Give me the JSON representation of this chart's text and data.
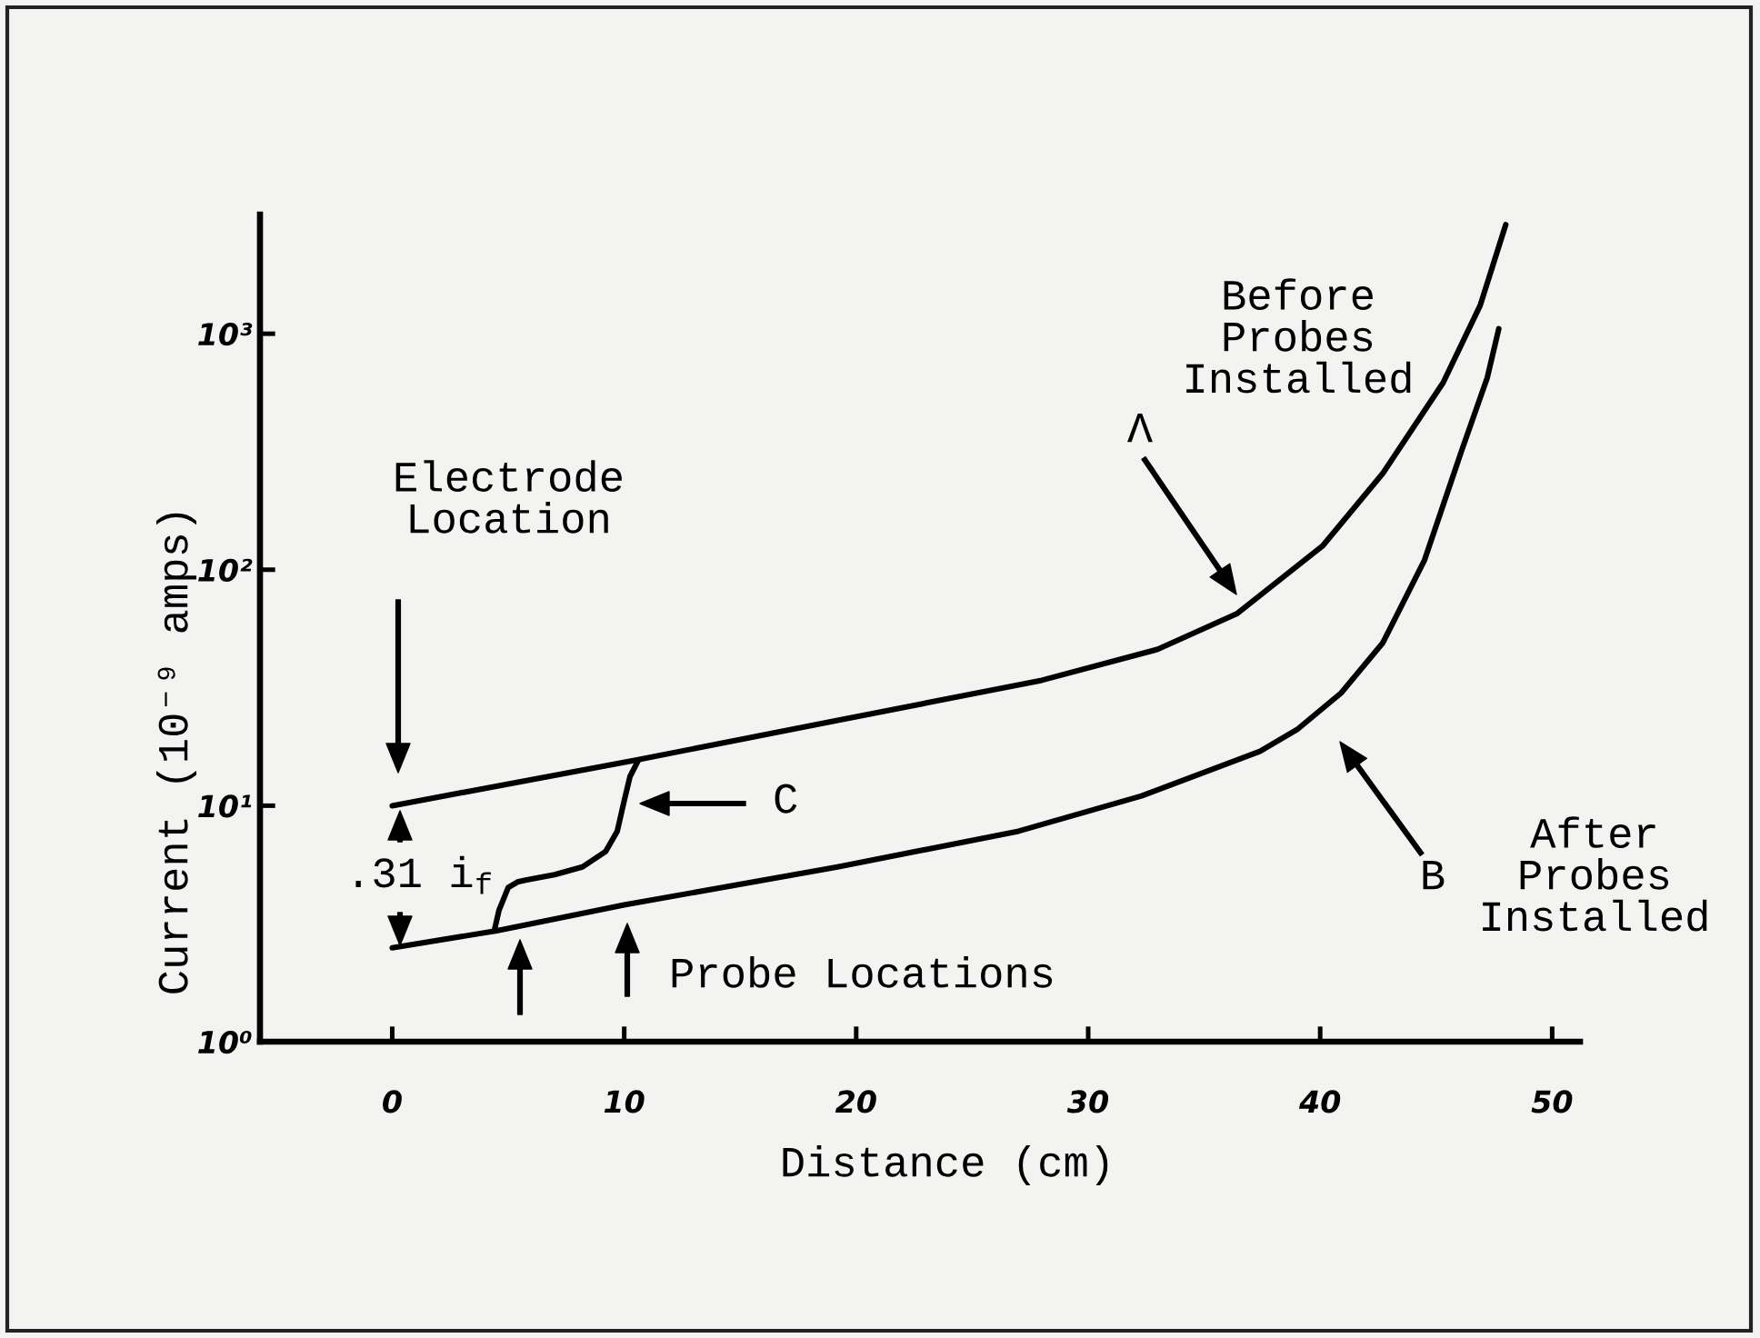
{
  "chart_data": {
    "type": "line",
    "xlabel": "Distance (cm)",
    "ylabel": "Current (10⁻⁹ amps)",
    "log": "y",
    "marker": "none",
    "line_style": "solid",
    "xlim": [
      -5.7,
      51.2
    ],
    "xticks": [
      0,
      10,
      20,
      30,
      40,
      50
    ],
    "ylim": [
      1,
      3200
    ],
    "yticks": [
      {
        "value": 1,
        "label": "10⁰"
      },
      {
        "value": 10,
        "label": "10¹"
      },
      {
        "value": 100,
        "label": "10²"
      },
      {
        "value": 1000,
        "label": "10³"
      }
    ],
    "series": [
      {
        "color": "#000000",
        "x": [
          0,
          10.5,
          19.2,
          28,
          33,
          36.4,
          40.1,
          42.7,
          45.3,
          46.9,
          48.0
        ],
        "values": [
          10,
          15.6,
          23,
          34,
          46,
          65,
          126,
          256,
          620,
          1320,
          2900
        ]
      },
      {
        "color": "#000000",
        "x": [
          0,
          4.5,
          10,
          19.2,
          27,
          32.3,
          37.4,
          39,
          40.9,
          42.7,
          44.5,
          46.1,
          47.2,
          47.7
        ],
        "values": [
          2.5,
          2.95,
          3.8,
          5.5,
          7.8,
          11,
          17,
          21,
          30,
          49,
          110,
          320,
          650,
          1050
        ]
      },
      {
        "color": "#000000",
        "x": [
          4.4,
          4.6,
          5.0,
          5.4,
          5.8,
          7.0,
          8.2,
          9.2,
          9.7,
          10.0,
          10.25,
          10.6
        ],
        "values": [
          2.95,
          3.6,
          4.5,
          4.75,
          4.85,
          5.1,
          5.5,
          6.4,
          7.8,
          10.5,
          13.3,
          15.5
        ]
      }
    ],
    "annotations": [
      "Electrode\nLocation",
      ".31 i$_{f}$",
      "C",
      "Probe Locations",
      "Λ",
      "Before\nProbes\nInstalled",
      "B",
      "After\nProbes\nInstalled"
    ]
  }
}
